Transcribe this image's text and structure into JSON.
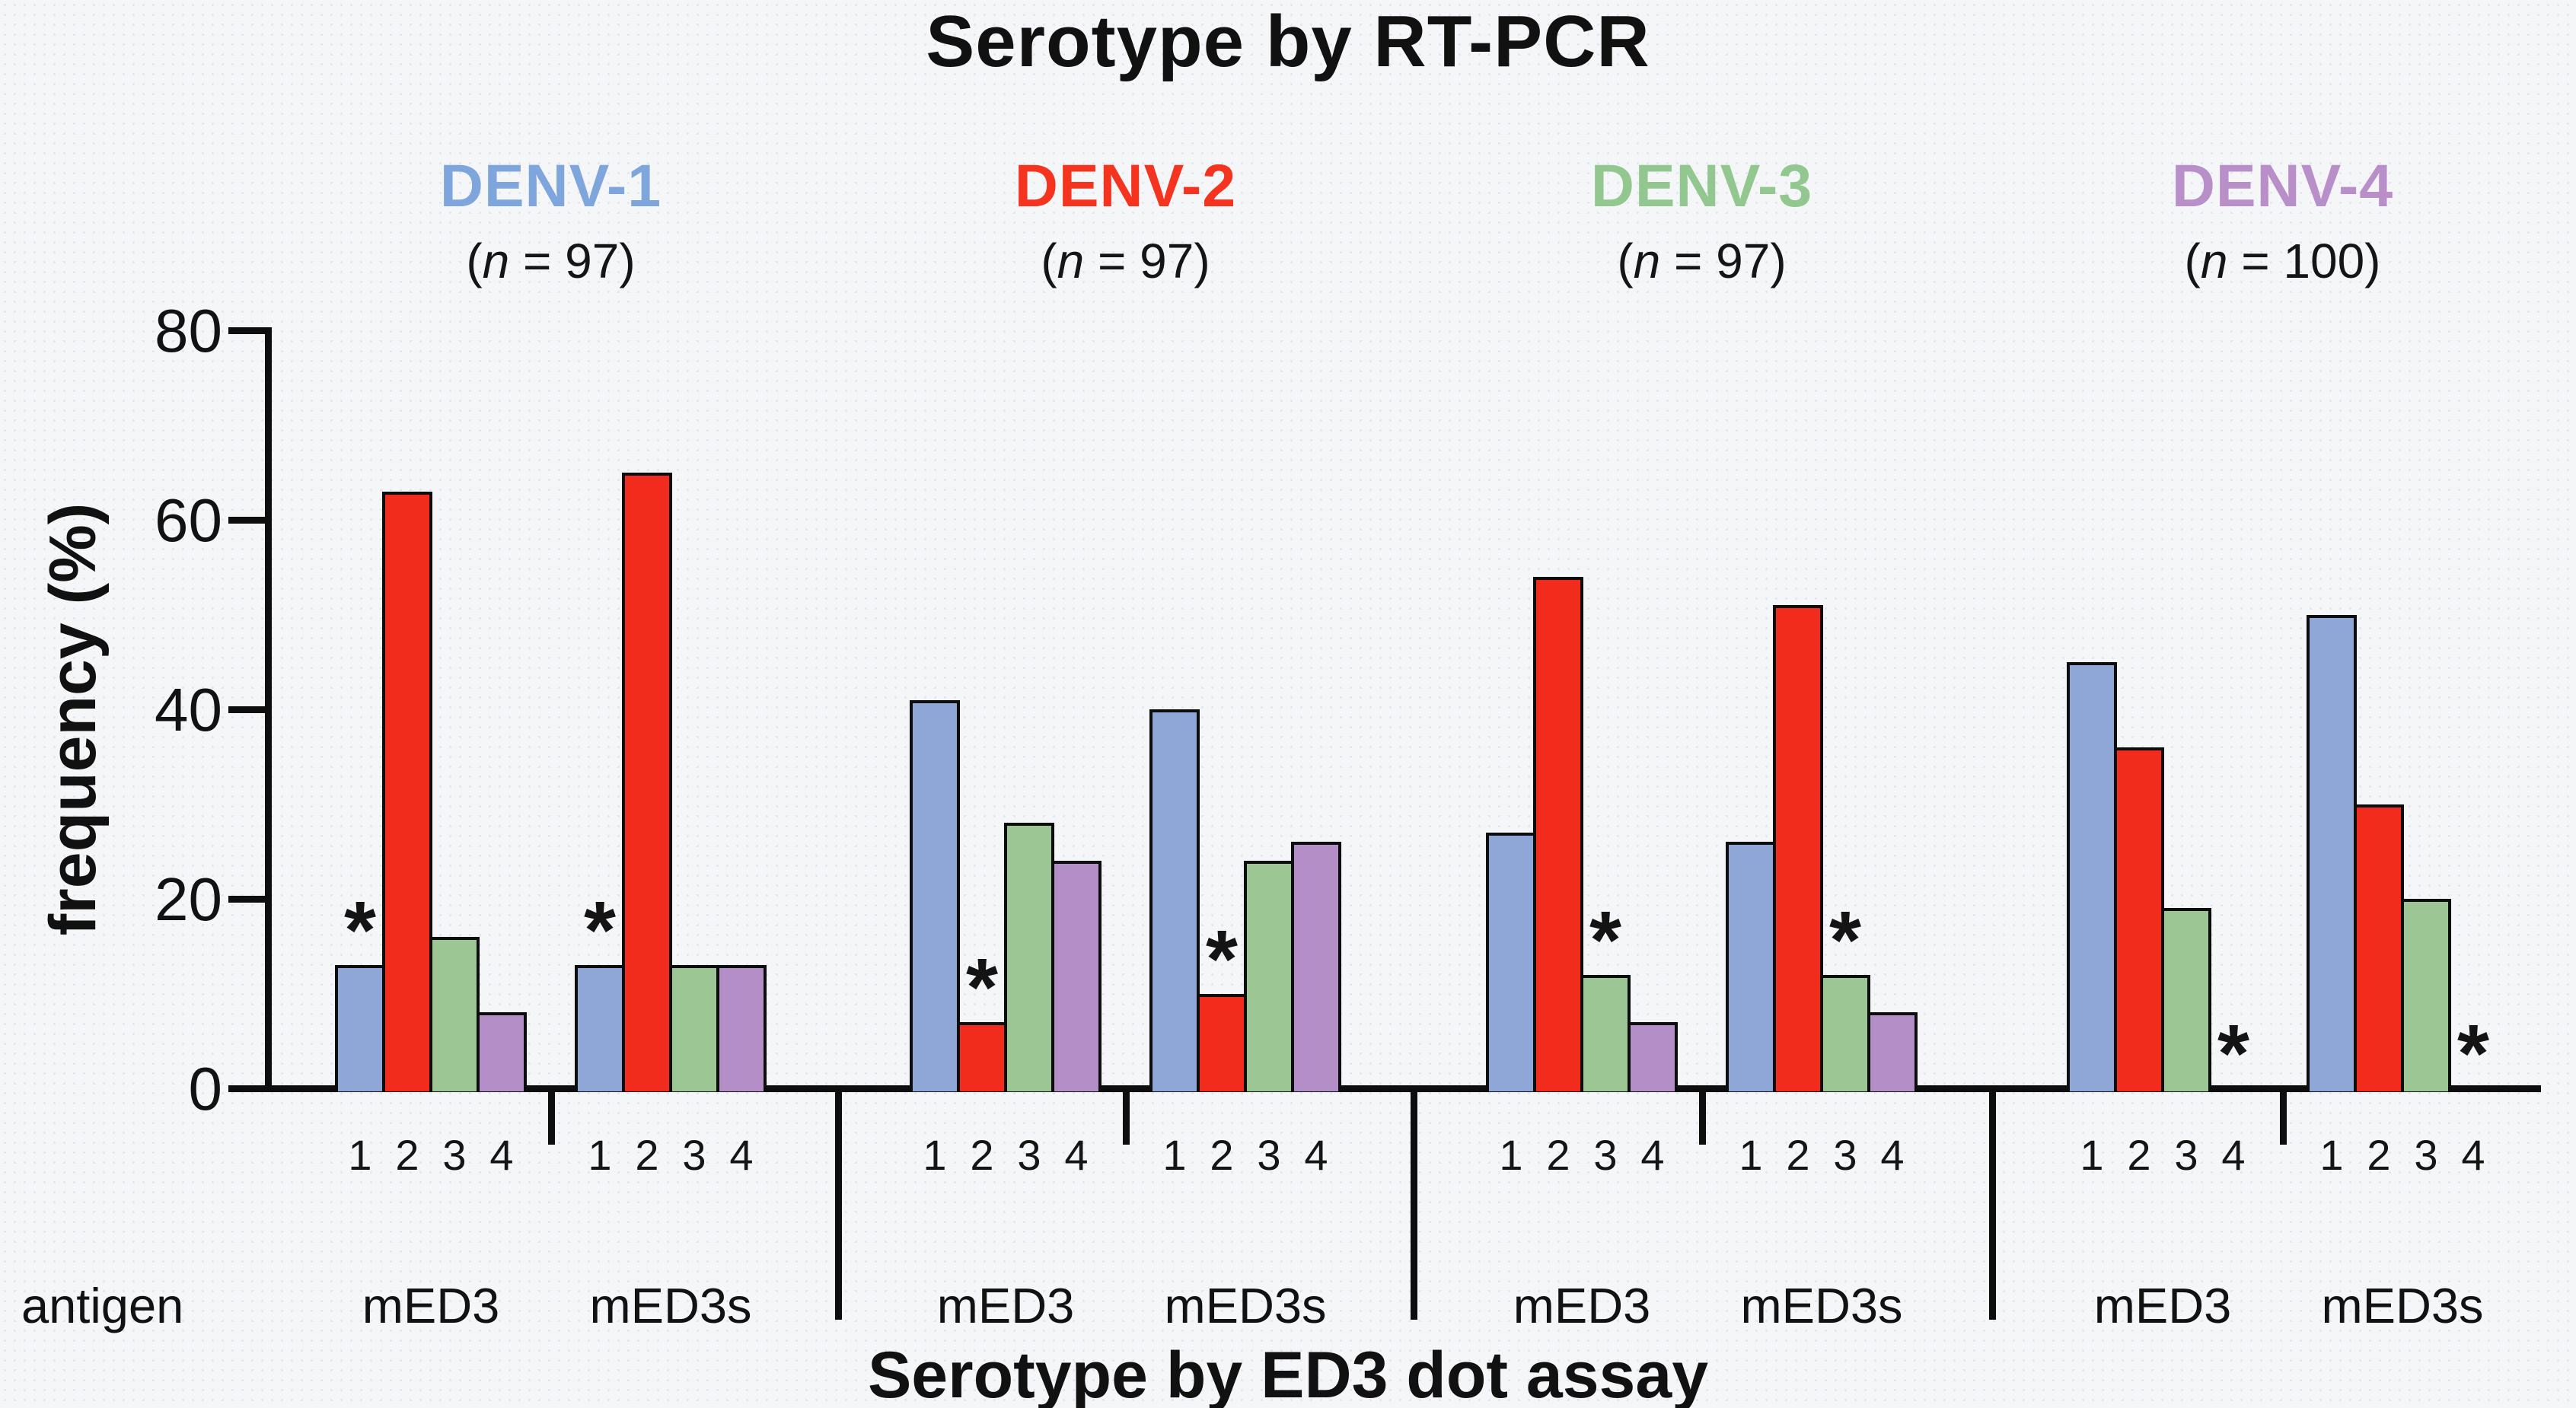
{
  "figure": {
    "title": "Serotype by RT-PCR",
    "x_axis_title": "Serotype by ED3 dot assay",
    "y_axis_title": "frequency (%)",
    "antigen_row_label": "antigen",
    "star_symbol": "*",
    "ink_color": "#0e0e0e",
    "background_color": "#f5f6f8"
  },
  "chart_data": {
    "type": "bar",
    "title": "Serotype by RT-PCR",
    "xlabel": "Serotype by ED3 dot assay",
    "ylabel": "frequency (%)",
    "ylim": [
      0,
      80
    ],
    "yticks": [
      0,
      20,
      40,
      60,
      80
    ],
    "grid": "off",
    "legend": "none",
    "bar_category_labels": [
      "1",
      "2",
      "3",
      "4"
    ],
    "bar_colors": [
      "#8fa7d7",
      "#f22c1c",
      "#9cc795",
      "#b48fc7"
    ],
    "star_note": "asterisk marks the bar of the homologous serotype",
    "groups": [
      {
        "serotype": "DENV-1",
        "label_color": "#7fa6dc",
        "n_text": "(n = 97)",
        "subgroups": [
          {
            "antigen": "mED3",
            "values": [
              13,
              63,
              16,
              8
            ],
            "star_bar_index": 0
          },
          {
            "antigen": "mED3s",
            "values": [
              13,
              65,
              13,
              13
            ],
            "star_bar_index": 0
          }
        ]
      },
      {
        "serotype": "DENV-2",
        "label_color": "#f4341f",
        "n_text": "(n = 97)",
        "subgroups": [
          {
            "antigen": "mED3",
            "values": [
              41,
              7,
              28,
              24
            ],
            "star_bar_index": 1
          },
          {
            "antigen": "mED3s",
            "values": [
              40,
              10,
              24,
              26
            ],
            "star_bar_index": 1
          }
        ]
      },
      {
        "serotype": "DENV-3",
        "label_color": "#92c88f",
        "n_text": "(n = 97)",
        "subgroups": [
          {
            "antigen": "mED3",
            "values": [
              27,
              54,
              12,
              7
            ],
            "star_bar_index": 2
          },
          {
            "antigen": "mED3s",
            "values": [
              26,
              51,
              12,
              8
            ],
            "star_bar_index": 2
          }
        ]
      },
      {
        "serotype": "DENV-4",
        "label_color": "#b98fc9",
        "n_text": "(n = 100)",
        "subgroups": [
          {
            "antigen": "mED3",
            "values": [
              45,
              36,
              19,
              0
            ],
            "star_bar_index": 3
          },
          {
            "antigen": "mED3s",
            "values": [
              50,
              30,
              20,
              0
            ],
            "star_bar_index": 3
          }
        ]
      }
    ]
  }
}
